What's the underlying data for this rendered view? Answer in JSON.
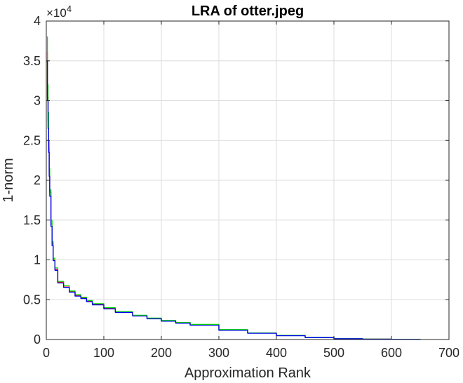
{
  "chart_data": {
    "type": "line",
    "title": "LRA of otter.jpeg",
    "xlabel": "Approximation Rank",
    "ylabel": "1-norm",
    "xlim": [
      0,
      700
    ],
    "ylim": [
      0,
      40000
    ],
    "x_ticks": [
      0,
      100,
      200,
      300,
      400,
      500,
      600,
      700
    ],
    "x_tick_labels": [
      "0",
      "100",
      "200",
      "300",
      "400",
      "500",
      "600",
      "700"
    ],
    "y_ticks": [
      0,
      5000,
      10000,
      15000,
      20000,
      25000,
      30000,
      35000,
      40000
    ],
    "y_tick_labels": [
      "0",
      "0.5",
      "1",
      "1.5",
      "2",
      "2.5",
      "3",
      "3.5",
      "4"
    ],
    "y_exponent_label": "×10",
    "y_exponent_power": "4",
    "grid": true,
    "series": [
      {
        "color": "#ff0000",
        "x": [
          1,
          2,
          3,
          4,
          5,
          6,
          8,
          10,
          12,
          15,
          20,
          30,
          40,
          50,
          60,
          70,
          80,
          100,
          120,
          150,
          175,
          200,
          225,
          250,
          300,
          350,
          400,
          450,
          500,
          550,
          600,
          650
        ],
        "y": [
          36000,
          30500,
          27500,
          24000,
          21000,
          18500,
          14500,
          12000,
          10000,
          8800,
          7200,
          6600,
          6000,
          5500,
          5200,
          4800,
          4400,
          3900,
          3450,
          3000,
          2650,
          2350,
          2100,
          1850,
          1200,
          800,
          500,
          250,
          100,
          50,
          20,
          0
        ]
      },
      {
        "color": "#00dd00",
        "x": [
          1,
          2,
          3,
          4,
          5,
          6,
          8,
          10,
          12,
          15,
          20,
          30,
          40,
          50,
          60,
          70,
          80,
          100,
          120,
          150,
          175,
          200,
          225,
          250,
          300,
          350,
          400,
          450,
          500,
          550,
          600,
          650
        ],
        "y": [
          38000,
          32000,
          28500,
          25000,
          21500,
          18800,
          15000,
          12300,
          10200,
          9000,
          7300,
          6750,
          6100,
          5650,
          5300,
          4900,
          4500,
          4000,
          3500,
          3050,
          2700,
          2400,
          2150,
          1900,
          1250,
          830,
          520,
          260,
          110,
          55,
          25,
          0
        ]
      },
      {
        "color": "#0000ee",
        "x": [
          1,
          2,
          3,
          4,
          5,
          6,
          8,
          10,
          12,
          15,
          20,
          30,
          40,
          50,
          60,
          70,
          80,
          100,
          120,
          150,
          175,
          200,
          225,
          250,
          300,
          350,
          400,
          450,
          500,
          550,
          600,
          650
        ],
        "y": [
          35000,
          30000,
          26500,
          23500,
          20500,
          18000,
          14200,
          11800,
          9900,
          8700,
          7100,
          6550,
          5950,
          5450,
          5150,
          4750,
          4350,
          3850,
          3400,
          2950,
          2600,
          2300,
          2050,
          1800,
          1150,
          780,
          480,
          240,
          95,
          45,
          15,
          0
        ]
      }
    ]
  }
}
